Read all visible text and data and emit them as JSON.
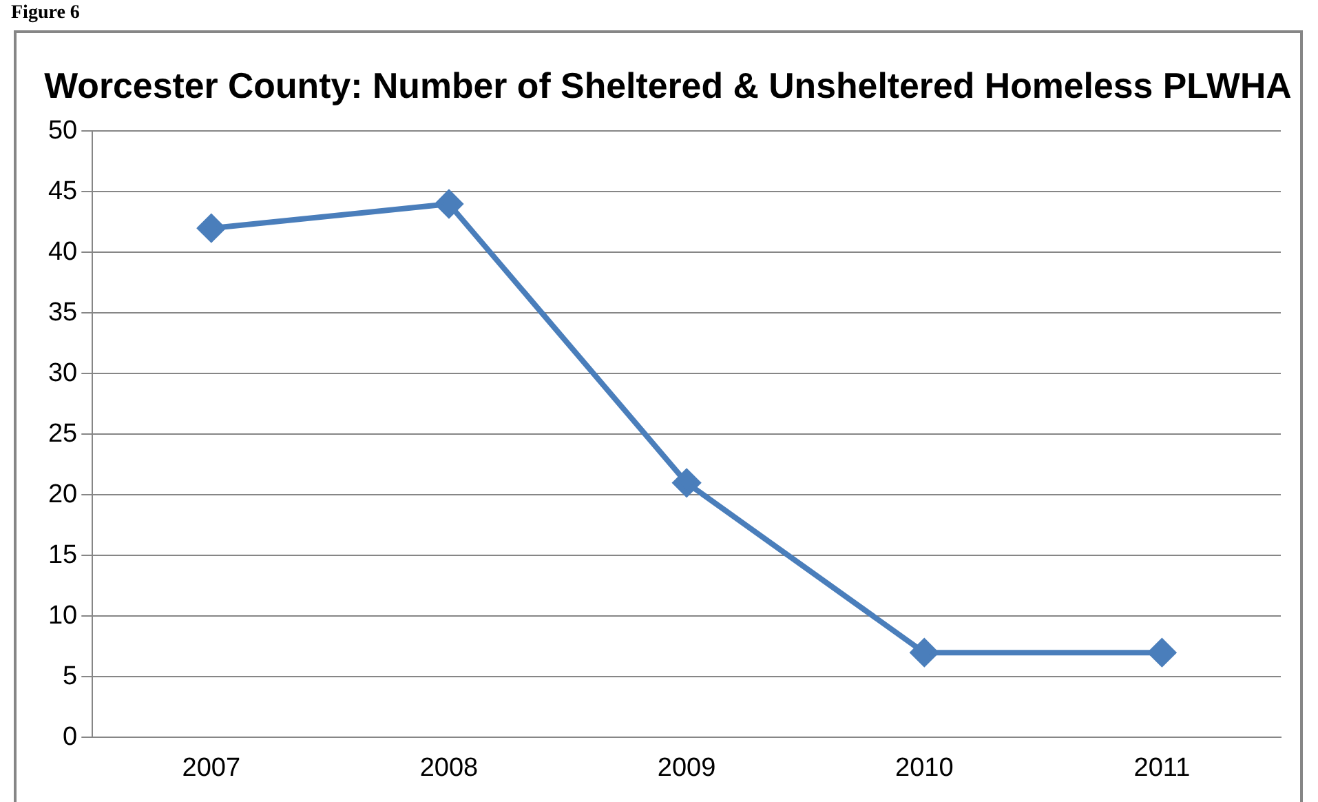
{
  "chart_data": {
    "type": "line",
    "title": "Worcester County: Number of Sheltered & Unsheltered Homeless PLWHA",
    "annotations": [
      "Figure 6"
    ],
    "categories": [
      "2007",
      "2008",
      "2009",
      "2010",
      "2011"
    ],
    "series": [
      {
        "color": "#4a7ebb",
        "values": [
          42,
          44,
          21,
          7,
          7
        ]
      }
    ],
    "ylim": [
      0,
      50
    ],
    "yticks": [
      0,
      5,
      10,
      15,
      20,
      25,
      30,
      35,
      40,
      45,
      50
    ],
    "grid": "y",
    "legend": false,
    "marker": "diamond",
    "line_style": "solid"
  }
}
